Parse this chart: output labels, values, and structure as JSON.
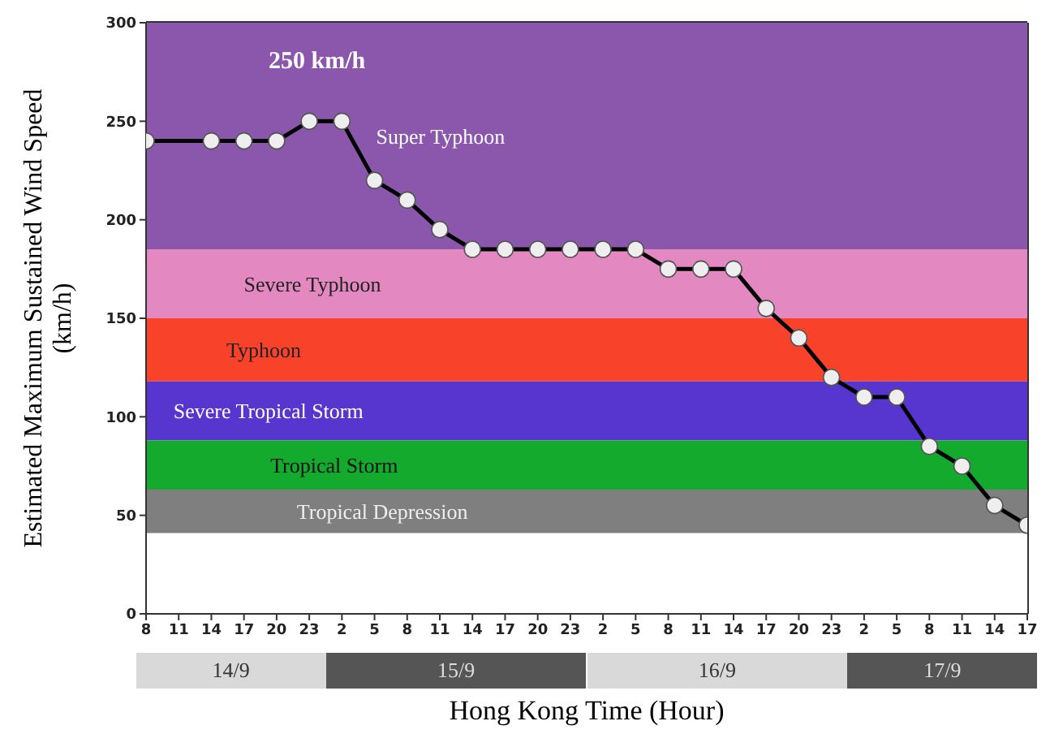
{
  "chart_data": {
    "type": "line",
    "xlabel": "Hong Kong Time (Hour)",
    "ylabel": "Estimated Maximum Sustained Wind Speed (km/h)",
    "categories": [
      "8",
      "11",
      "14",
      "17",
      "20",
      "23",
      "2",
      "5",
      "8",
      "11",
      "14",
      "17",
      "20",
      "23",
      "2",
      "5",
      "8",
      "11",
      "14",
      "17",
      "20",
      "23",
      "2",
      "5",
      "8",
      "11",
      "14",
      "17"
    ],
    "series": [
      {
        "color": "#000000",
        "values": [
          240,
          null,
          240,
          240,
          240,
          250,
          250,
          220,
          210,
          195,
          185,
          185,
          185,
          185,
          185,
          185,
          175,
          175,
          175,
          155,
          140,
          120,
          110,
          110,
          85,
          75,
          55,
          45
        ]
      }
    ],
    "ylim": [
      0,
      300
    ],
    "yticks": [
      0,
      50,
      100,
      150,
      200,
      250,
      300
    ],
    "marker": "circle",
    "line_style": "solid",
    "bands": [
      {
        "axis": "y",
        "from": 185,
        "to": 300,
        "label": "Super Typhoon",
        "color": "#8b57ad"
      },
      {
        "axis": "y",
        "from": 150,
        "to": 185,
        "label": "Severe Typhoon",
        "color": "#e488c2"
      },
      {
        "axis": "y",
        "from": 118,
        "to": 150,
        "label": "Typhoon",
        "color": "#f8432a"
      },
      {
        "axis": "y",
        "from": 88,
        "to": 118,
        "label": "Severe Tropical Storm",
        "color": "#5735cf"
      },
      {
        "axis": "y",
        "from": 63,
        "to": 88,
        "label": "Tropical Storm",
        "color": "#14aa2e"
      },
      {
        "axis": "y",
        "from": 41,
        "to": 63,
        "label": "Tropical Depression",
        "color": "#7f7f7f"
      }
    ],
    "annotations": [
      "250 km/h",
      "14/9",
      "15/9",
      "16/9",
      "17/9"
    ]
  }
}
